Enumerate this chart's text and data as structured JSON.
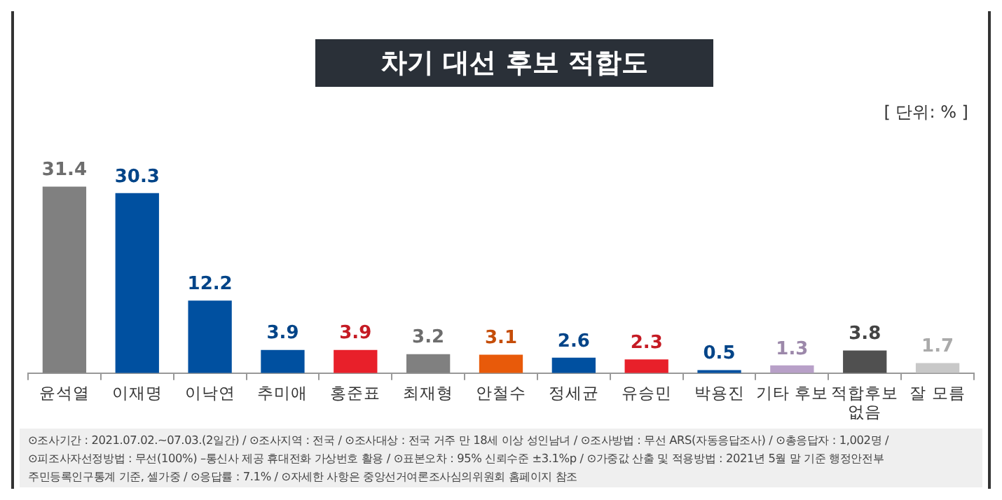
{
  "chart_data": {
    "type": "bar",
    "title": "차기 대선 후보 적합도",
    "subtitle": "[ 단위: % ]",
    "categories": [
      "윤석열",
      "이재명",
      "이낙연",
      "추미애",
      "홍준표",
      "최재형",
      "안철수",
      "정세균",
      "유승민",
      "박용진",
      "기타 후보",
      "적합후보 없음",
      "잘 모름"
    ],
    "values": [
      31.4,
      30.3,
      12.2,
      3.9,
      3.9,
      3.2,
      3.1,
      2.6,
      2.3,
      0.5,
      1.3,
      3.8,
      1.7
    ],
    "colors": [
      "#808080",
      "#0050a0",
      "#0050a0",
      "#0050a0",
      "#e8202a",
      "#808080",
      "#e85a0a",
      "#0050a0",
      "#e8202a",
      "#0050a0",
      "#b8a0c8",
      "#505050",
      "#c8c8c8"
    ],
    "data_labels": true,
    "grid": false,
    "legend": false,
    "annotations": [
      "⊙조사기간 : 2021.07.02.~07.03.(2일간) / ⊙조사지역 : 전국 / ⊙조사대상 : 전국 거주 만 18세 이상 성인남녀 / ⊙조사방법 : 무선 ARS(자동응답조사) / ⊙총응답자 : 1,002명 /",
      "⊙피조사자선정방법 : 무선(100%) –통신사 제공 휴대전화 가상번호 활용 / ⊙표본오차 : 95% 신뢰수준 ±3.1%p / ⊙가중값 산출 및 적용방법 : 2021년 5월 말 기준 행정안전부",
      "주민등록인구통계 기준, 셀가중 / ⊙응답률 : 7.1% / ⊙자세한 사항은 중앙선거여론조사심의위원회 홈페이지 참조"
    ]
  }
}
